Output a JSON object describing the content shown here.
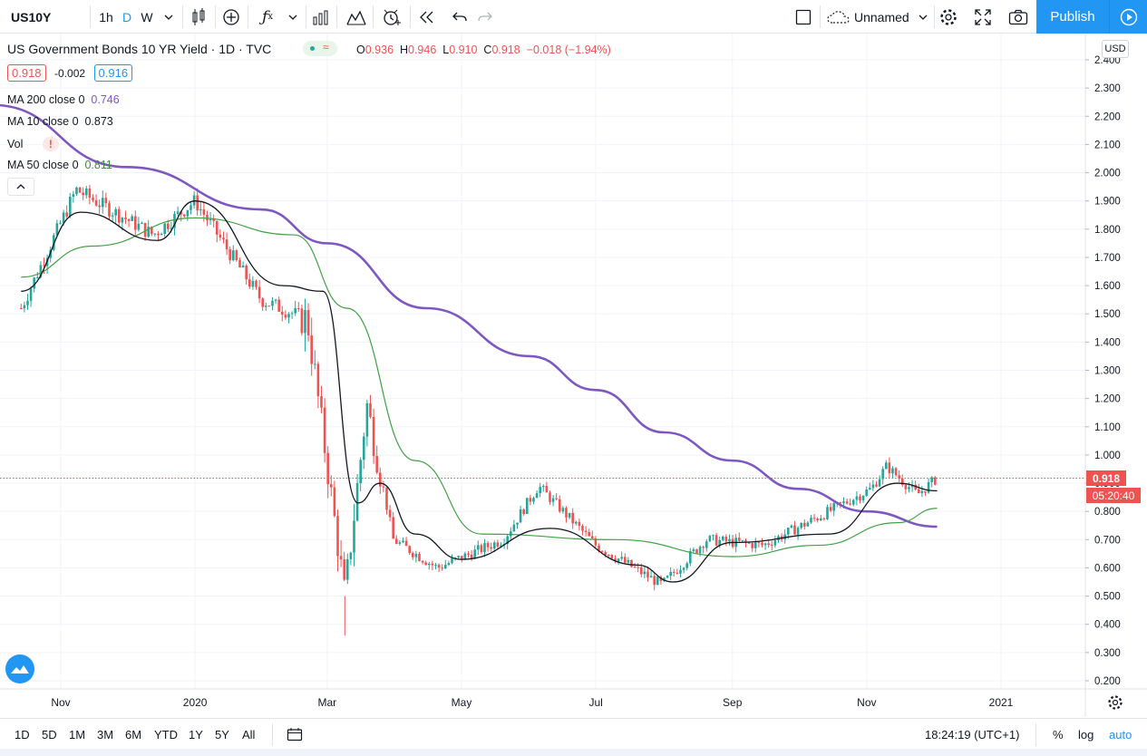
{
  "toolbar": {
    "symbol": "US10Y",
    "intervals": [
      "1h",
      "D",
      "W"
    ],
    "active_interval": "D",
    "layout_name": "Unnamed",
    "publish_label": "Publish",
    "icons": [
      "candles-icon",
      "add-compare-icon",
      "indicators-icon",
      "chart-type-icon",
      "templates-icon",
      "alert-icon",
      "replay-icon",
      "undo-icon",
      "redo-icon",
      "fullscreen-square-icon",
      "cloud-icon",
      "settings-icon",
      "fullscreen-icon",
      "camera-icon",
      "play-icon"
    ]
  },
  "legend": {
    "title": "US Government Bonds 10 YR Yield · 1D · TVC",
    "open_label": "O",
    "open": "0.936",
    "high_label": "H",
    "high": "0.946",
    "low_label": "L",
    "low": "0.910",
    "close_label": "C",
    "close": "0.918",
    "change": "−0.018 (−1.94%)",
    "bid": "0.918",
    "spread": "-0.002",
    "ask": "0.916",
    "indicators": [
      {
        "label": "MA 200 close 0",
        "value": "0.746",
        "color": "#7e57c2"
      },
      {
        "label": "MA 10 close 0",
        "value": "0.873",
        "color": "#131722"
      },
      {
        "label": "Vol",
        "value": "!",
        "color": "#ef5350"
      },
      {
        "label": "MA 50 close 0",
        "value": "0.811",
        "color": "#388e3c"
      }
    ]
  },
  "colors": {
    "up": "#26a69a",
    "down": "#ef5350",
    "ma200": "#7e57c2",
    "ma10": "#131722",
    "ma50": "#43a047",
    "grid": "#f0f3fa",
    "last_price": "#ef5350",
    "accent": "#2196f3"
  },
  "chart_data": {
    "type": "line",
    "title": "US Government Bonds 10 YR Yield",
    "currency": "USD",
    "y_ticks": [
      "2.400",
      "2.300",
      "2.200",
      "2.100",
      "2.000",
      "1.900",
      "1.800",
      "1.700",
      "1.600",
      "1.500",
      "1.400",
      "1.300",
      "1.200",
      "1.100",
      "1.000",
      "0.900",
      "0.800",
      "0.700",
      "0.600",
      "0.500",
      "0.400",
      "0.300",
      "0.200"
    ],
    "ylim": [
      0.165,
      2.45
    ],
    "x_ticks": [
      "Nov",
      "2020",
      "Mar",
      "May",
      "Jul",
      "Sep",
      "Nov",
      "2021"
    ],
    "last_price": "0.918",
    "countdown": "05:20:40",
    "series": [
      {
        "name": "US10Y",
        "style": "candles",
        "x": [
          "2019-10-14",
          "2019-11-08",
          "2019-12-13",
          "2020-01-01",
          "2020-01-31",
          "2020-02-21",
          "2020-03-09",
          "2020-03-19",
          "2020-03-31",
          "2020-04-20",
          "2020-05-20",
          "2020-06-05",
          "2020-07-01",
          "2020-07-31",
          "2020-08-20",
          "2020-09-15",
          "2020-10-10",
          "2020-11-03",
          "2020-11-10",
          "2020-11-24",
          "2020-12-03"
        ],
        "close": [
          1.52,
          1.94,
          1.78,
          1.9,
          1.55,
          1.48,
          0.5,
          1.18,
          0.7,
          0.6,
          0.7,
          0.89,
          0.68,
          0.54,
          0.7,
          0.68,
          0.78,
          0.88,
          0.96,
          0.86,
          0.918
        ]
      },
      {
        "name": "MA 200",
        "x": [
          "2019-10-01",
          "2019-12-01",
          "2020-01-31",
          "2020-03-01",
          "2020-04-15",
          "2020-06-01",
          "2020-07-01",
          "2020-08-01",
          "2020-09-01",
          "2020-10-01",
          "2020-11-01",
          "2020-12-03"
        ],
        "values": [
          2.24,
          2.02,
          1.87,
          1.75,
          1.52,
          1.35,
          1.23,
          1.08,
          0.98,
          0.88,
          0.8,
          0.746
        ]
      },
      {
        "name": "MA 10",
        "x": [
          "2019-10-14",
          "2019-11-10",
          "2019-12-15",
          "2020-01-01",
          "2020-02-10",
          "2020-02-28",
          "2020-03-15",
          "2020-03-25",
          "2020-04-10",
          "2020-05-01",
          "2020-06-10",
          "2020-07-20",
          "2020-08-05",
          "2020-09-01",
          "2020-10-15",
          "2020-11-15",
          "2020-12-03"
        ],
        "values": [
          1.58,
          1.86,
          1.76,
          1.9,
          1.6,
          1.58,
          0.83,
          0.9,
          0.72,
          0.63,
          0.74,
          0.61,
          0.55,
          0.69,
          0.72,
          0.9,
          0.873
        ]
      },
      {
        "name": "MA 50",
        "x": [
          "2019-10-14",
          "2019-11-15",
          "2020-01-01",
          "2020-02-15",
          "2020-03-10",
          "2020-04-10",
          "2020-05-10",
          "2020-07-10",
          "2020-09-01",
          "2020-10-10",
          "2020-11-15",
          "2020-12-03"
        ],
        "values": [
          1.63,
          1.74,
          1.84,
          1.78,
          1.52,
          0.98,
          0.72,
          0.7,
          0.64,
          0.68,
          0.76,
          0.811
        ]
      }
    ]
  },
  "bottom": {
    "ranges": [
      "1D",
      "5D",
      "1M",
      "3M",
      "6M",
      "YTD",
      "1Y",
      "5Y",
      "All"
    ],
    "time": "18:24:19 (UTC+1)",
    "percent": "%",
    "log": "log",
    "auto": "auto"
  }
}
